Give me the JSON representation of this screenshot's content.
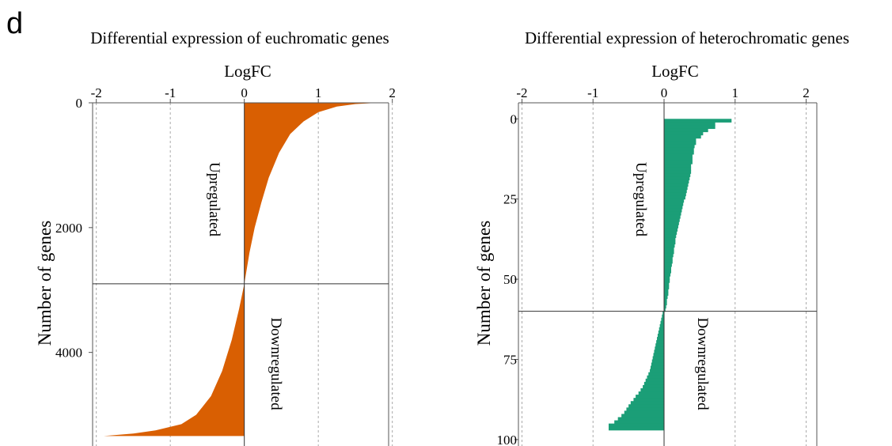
{
  "panel_label": "d",
  "colors": {
    "euchromatic": "#D95F02",
    "heterochromatic": "#1B9E77",
    "grid": "#AAAAAA",
    "axis": "#555555"
  },
  "chart_data": [
    {
      "type": "bar",
      "orientation": "horizontal",
      "title": "Differential expression of euchromatic genes",
      "xlabel": "LogFC",
      "ylabel": "Number of genes",
      "xlim": [
        -2.05,
        1.95
      ],
      "ylim": [
        0,
        5500
      ],
      "x_ticks": [
        "-2",
        "-1",
        "0",
        "1",
        "2"
      ],
      "y_ticks": [
        "0",
        "2000",
        "4000"
      ],
      "grid_x": true,
      "divider_y": 2900,
      "annotations": [
        "Upregulated",
        "Downregulated"
      ],
      "series": [
        {
          "color": "#D95F02",
          "profile": [
            {
              "rank": 0,
              "logfc": 1.8
            },
            {
              "rank": 20,
              "logfc": 1.5
            },
            {
              "rank": 60,
              "logfc": 1.25
            },
            {
              "rank": 150,
              "logfc": 1.0
            },
            {
              "rank": 300,
              "logfc": 0.8
            },
            {
              "rank": 500,
              "logfc": 0.62
            },
            {
              "rank": 800,
              "logfc": 0.47
            },
            {
              "rank": 1200,
              "logfc": 0.33
            },
            {
              "rank": 1600,
              "logfc": 0.23
            },
            {
              "rank": 2000,
              "logfc": 0.14
            },
            {
              "rank": 2400,
              "logfc": 0.07
            },
            {
              "rank": 2900,
              "logfc": 0.0
            },
            {
              "rank": 3300,
              "logfc": -0.07
            },
            {
              "rank": 3800,
              "logfc": -0.17
            },
            {
              "rank": 4300,
              "logfc": -0.3
            },
            {
              "rank": 4700,
              "logfc": -0.45
            },
            {
              "rank": 5000,
              "logfc": -0.65
            },
            {
              "rank": 5150,
              "logfc": -0.85
            },
            {
              "rank": 5250,
              "logfc": -1.2
            },
            {
              "rank": 5300,
              "logfc": -1.5
            },
            {
              "rank": 5340,
              "logfc": -1.9
            }
          ]
        }
      ]
    },
    {
      "type": "bar",
      "orientation": "horizontal",
      "title": "Differential expression of heterochromatic genes",
      "xlabel": "LogFC",
      "ylabel": "Number of genes",
      "xlim": [
        -2.05,
        2.15
      ],
      "ylim": [
        -5,
        102
      ],
      "x_ticks": [
        "-2",
        "-1",
        "0",
        "1",
        "2"
      ],
      "y_ticks": [
        "0",
        "25",
        "50",
        "75",
        "100"
      ],
      "grid_x": true,
      "divider_y": 60,
      "annotations": [
        "Upregulated",
        "Downregulated"
      ],
      "series": [
        {
          "color": "#1B9E77",
          "values": [
            0.95,
            0.72,
            0.72,
            0.62,
            0.55,
            0.52,
            0.45,
            0.45,
            0.43,
            0.42,
            0.42,
            0.4,
            0.4,
            0.4,
            0.38,
            0.38,
            0.38,
            0.37,
            0.36,
            0.35,
            0.34,
            0.33,
            0.32,
            0.31,
            0.3,
            0.28,
            0.27,
            0.26,
            0.25,
            0.24,
            0.23,
            0.22,
            0.21,
            0.2,
            0.19,
            0.18,
            0.17,
            0.16,
            0.16,
            0.15,
            0.14,
            0.14,
            0.13,
            0.12,
            0.12,
            0.11,
            0.1,
            0.1,
            0.09,
            0.08,
            0.08,
            0.07,
            0.07,
            0.06,
            0.06,
            0.05,
            0.04,
            0.04,
            0.03,
            0.02,
            -0.02,
            -0.03,
            -0.04,
            -0.05,
            -0.06,
            -0.07,
            -0.08,
            -0.09,
            -0.1,
            -0.11,
            -0.12,
            -0.13,
            -0.14,
            -0.15,
            -0.16,
            -0.17,
            -0.18,
            -0.19,
            -0.2,
            -0.22,
            -0.24,
            -0.26,
            -0.28,
            -0.3,
            -0.33,
            -0.36,
            -0.4,
            -0.43,
            -0.47,
            -0.5,
            -0.53,
            -0.56,
            -0.6,
            -0.65,
            -0.7,
            -0.78,
            -0.78
          ]
        }
      ]
    }
  ]
}
